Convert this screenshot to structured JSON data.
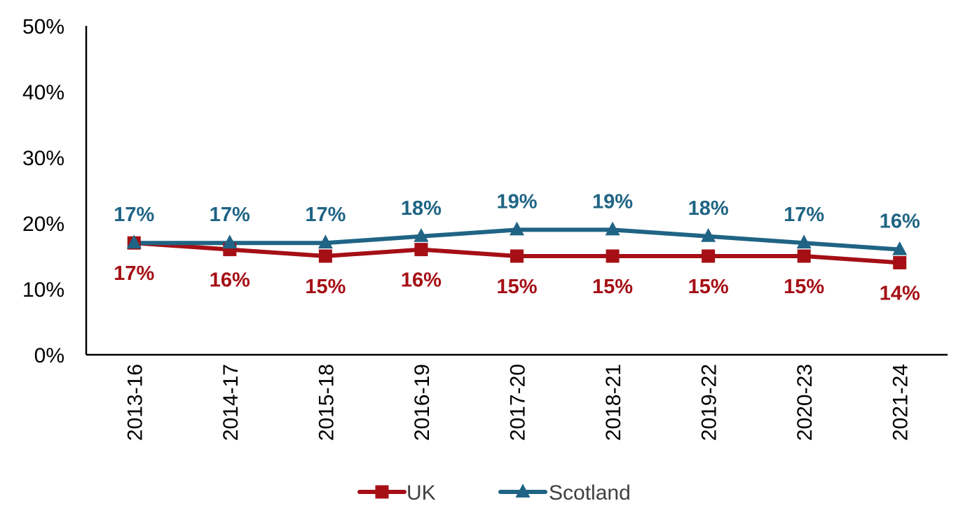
{
  "chart_data": {
    "type": "line",
    "categories": [
      "2013-16",
      "2014-17",
      "2015-18",
      "2016-19",
      "2017-20",
      "2018-21",
      "2019-22",
      "2020-23",
      "2021-24"
    ],
    "series": [
      {
        "name": "UK",
        "color": "#A50F15",
        "marker": "square",
        "label_position": "below",
        "values": [
          17,
          16,
          15,
          16,
          15,
          15,
          15,
          15,
          14
        ],
        "labels": [
          "17%",
          "16%",
          "15%",
          "16%",
          "15%",
          "15%",
          "15%",
          "15%",
          "14%"
        ]
      },
      {
        "name": "Scotland",
        "color": "#1F6484",
        "marker": "triangle",
        "label_position": "above",
        "values": [
          17,
          17,
          17,
          18,
          19,
          19,
          18,
          17,
          16
        ],
        "labels": [
          "17%",
          "17%",
          "17%",
          "18%",
          "19%",
          "19%",
          "18%",
          "17%",
          "16%"
        ]
      }
    ],
    "y_ticks": [
      "0%",
      "10%",
      "20%",
      "30%",
      "40%",
      "50%"
    ],
    "ylim": [
      0,
      50
    ],
    "y_unit": "percent",
    "grid": false,
    "legend_position": "bottom",
    "x_tick_rotation": "vertical"
  }
}
